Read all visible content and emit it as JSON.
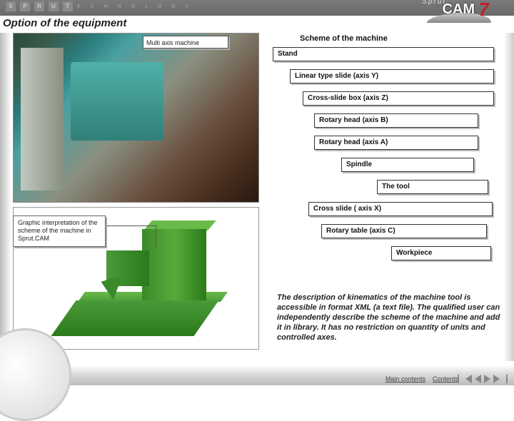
{
  "brand": {
    "sprut": "Sprut.",
    "cam": "CAM",
    "seven": "7",
    "tech": "T E C H N O L O G Y",
    "letters": [
      "S",
      "P",
      "R",
      "U",
      "T"
    ]
  },
  "title": "Option of the equipment",
  "photo_label": "Multi axis machine",
  "graphic_label": "Graphic interpretation of the scheme of the machine in Sprut.CAM",
  "scheme_title": "Scheme of the machine",
  "scheme": [
    "Stand",
    "Linear type slide (axis Y)",
    "Cross-slide box (axis Z)",
    "Rotary head (axis B)",
    "Rotary head (axis A)",
    "Spindle",
    "The tool",
    "Cross slide ( axis X)",
    "Rotary table (axis C)",
    "Workpiece"
  ],
  "description": "The description of kinematics of the machine tool is accessible in format XML (a text file). The qualified user can independently describe the scheme of the machine and add it in library. It has no restriction on quantity of units and controlled axes.",
  "nav": {
    "main": "Main contents",
    "contents": "Contents"
  },
  "colors": {
    "accent": "#c0202a",
    "box_border": "#333333",
    "box_shadow": "#bbbbbb",
    "render_green": "#4a9a3a"
  }
}
